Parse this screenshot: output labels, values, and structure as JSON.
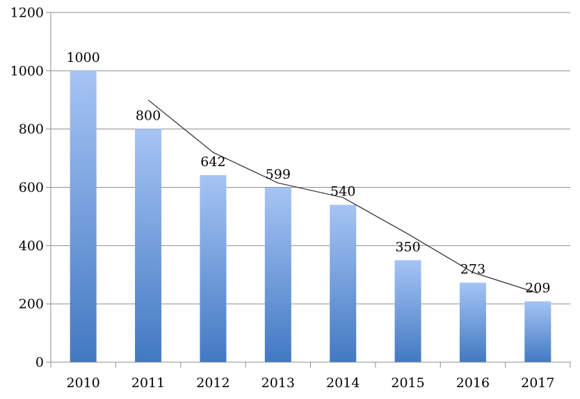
{
  "colors": {
    "background": "#ffffff",
    "bar_top": "#a6c4f4",
    "bar_bottom": "#4279c2",
    "gridline": "#8c8c8c",
    "axis": "#8c8c8c",
    "trend_line": "#303030",
    "label_text": "#000000"
  },
  "chart_data": {
    "type": "bar",
    "title": "",
    "xlabel": "",
    "ylabel": "",
    "categories": [
      "2010",
      "2011",
      "2012",
      "2013",
      "2014",
      "2015",
      "2016",
      "2017"
    ],
    "values": [
      1000,
      800,
      642,
      599,
      540,
      350,
      273,
      209
    ],
    "data_labels": [
      "1000",
      "800",
      "642",
      "599",
      "540",
      "350",
      "273",
      "209"
    ],
    "y_ticks": [
      0,
      200,
      400,
      600,
      800,
      1000,
      1200
    ],
    "ylim": [
      0,
      1200
    ],
    "grid": "horizontal-major",
    "legend": "none",
    "overlay_line": {
      "name": "trend-line",
      "categories": [
        "2011",
        "2012",
        "2013",
        "2014",
        "2015",
        "2016",
        "2017"
      ],
      "values": [
        900,
        720,
        615,
        565,
        440,
        308,
        237
      ]
    }
  }
}
